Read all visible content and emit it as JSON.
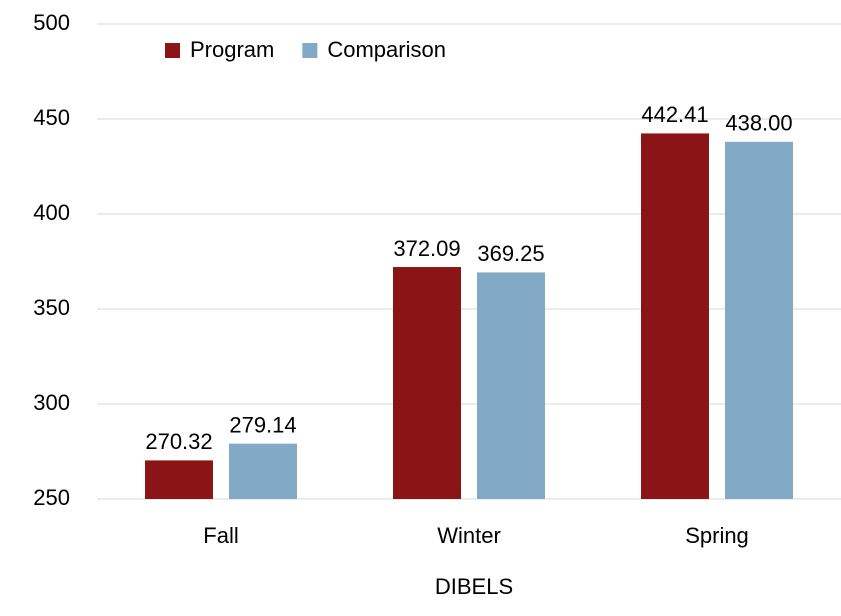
{
  "chart_data": {
    "type": "bar",
    "x_label": "DIBELS",
    "categories": [
      "Fall",
      "Winter",
      "Spring"
    ],
    "series": [
      {
        "name": "Program",
        "color": "#8b1416",
        "values": [
          270.32,
          372.09,
          442.41
        ],
        "value_labels": [
          "270.32",
          "372.09",
          "442.41"
        ]
      },
      {
        "name": "Comparison",
        "color": "#82aac6",
        "values": [
          279.14,
          369.25,
          438.0
        ],
        "value_labels": [
          "279.14",
          "369.25",
          "438.00"
        ]
      }
    ],
    "ylim": [
      250,
      500
    ],
    "yticks": [
      250,
      300,
      350,
      400,
      450,
      500
    ],
    "grid": true,
    "legend": "top-left"
  }
}
